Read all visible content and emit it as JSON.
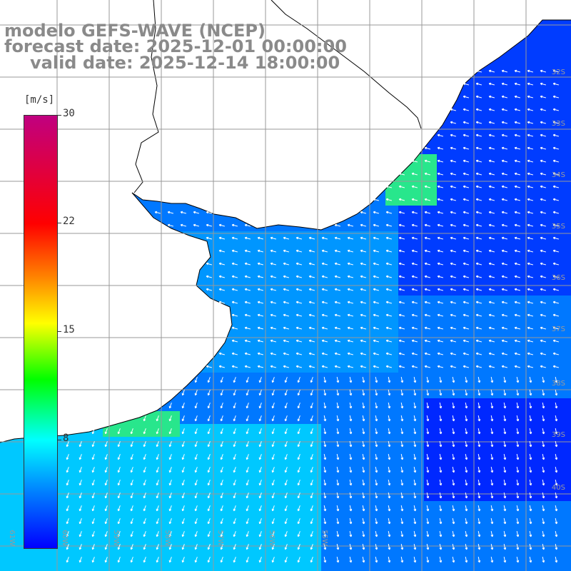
{
  "title": {
    "line1": "modelo GEFS-WAVE (NCEP)",
    "line2": "forecast date: 2025-12-01 00:00:00",
    "line3": "valid date: 2025-12-14 18:00:00"
  },
  "colorbar": {
    "units": "[m/s]",
    "ticks": [
      "30",
      "22",
      "15",
      "8"
    ],
    "colors": [
      "#c00080",
      "#ff0000",
      "#ff8000",
      "#ffff00",
      "#00ff00",
      "#00ffff",
      "#0080ff",
      "#0000ff"
    ]
  },
  "lat_labels": [
    "32S",
    "33S",
    "34S",
    "35S",
    "36S",
    "37S",
    "38S",
    "39S",
    "40S"
  ],
  "lon_labels": [
    "61W",
    "60W",
    "59W",
    "58W",
    "57W",
    "56W",
    "55W"
  ],
  "map_colors": {
    "land": "#ffffff",
    "coastline": "#000000",
    "grid": "#999999",
    "arrow": "#ffffff"
  }
}
